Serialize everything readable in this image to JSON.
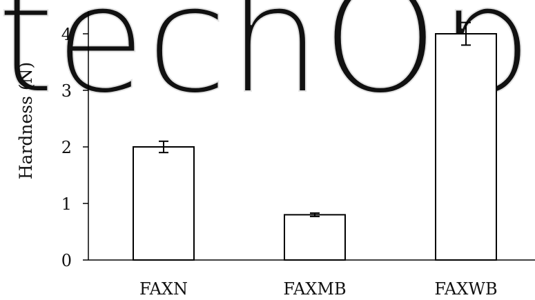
{
  "watermark": {
    "text": "techOpen",
    "color": "#e2e2e2"
  },
  "chart_data": {
    "type": "bar",
    "title": "",
    "xlabel": "",
    "ylabel": "Hardness (N)",
    "categories": [
      "FAXN",
      "FAXMB",
      "FAXWB"
    ],
    "values": [
      2.0,
      0.8,
      4.0
    ],
    "errors": [
      0.1,
      0.03,
      0.2
    ],
    "ylim": [
      0,
      4.4
    ],
    "yticks": [
      0,
      1,
      2,
      3,
      4
    ],
    "grid": false,
    "legend": "none",
    "bar_fill": "#ffffff",
    "bar_stroke": "#000000"
  }
}
